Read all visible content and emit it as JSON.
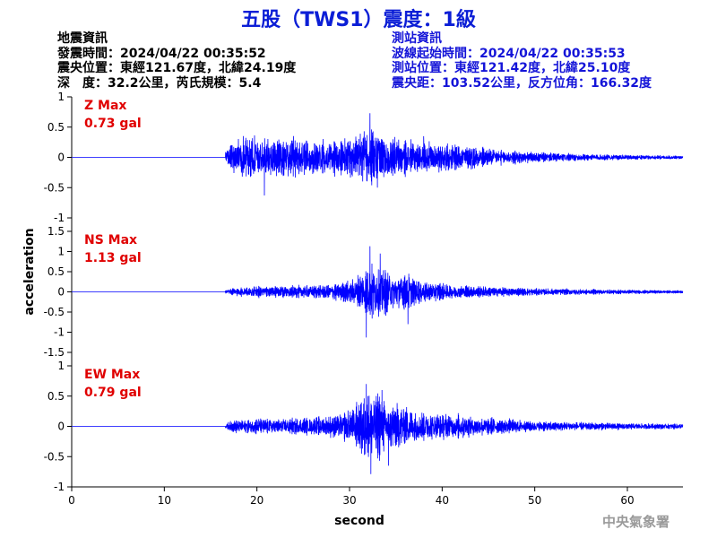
{
  "header": {
    "title": "五股（TWS1）震度：1級",
    "quake_info": [
      "地震資訊",
      "發震時間：2024/04/22 00:35:52",
      "震央位置：東經121.67度，北緯24.19度",
      "深　度：32.2公里，芮氏規模：5.4"
    ],
    "station_info": [
      "測站資訊",
      "波線起始時間：2024/04/22 00:35:53",
      "測站位置：東經121.42度，北緯25.10度",
      "震央距：103.52公里，反方位角：166.32度"
    ]
  },
  "footer": {
    "credit": "中央氣象署"
  },
  "colors": {
    "trace": "#0000ff",
    "max_label": "#e00000",
    "title": "#0b1ed6",
    "station_info": "#1414d8"
  },
  "chart_data": {
    "type": "line",
    "xlabel": "second",
    "ylabel": "acceleration",
    "xlim": [
      0,
      66
    ],
    "xticks": [
      0,
      10,
      20,
      30,
      40,
      50,
      60
    ],
    "grid": false,
    "panels": [
      {
        "name": "Z",
        "max_label": "Z Max",
        "max_value": "0.73 gal",
        "ylim": [
          -1,
          1
        ],
        "yticks": [
          -1,
          -0.5,
          0,
          0.5,
          1
        ],
        "ytick_labels": [
          "-1",
          "-0.5",
          "0",
          "0.5",
          "1"
        ],
        "onset_s": 16.6,
        "envelope": [
          [
            16.6,
            0.12
          ],
          [
            17.5,
            0.3
          ],
          [
            18,
            0.4
          ],
          [
            19,
            0.45
          ],
          [
            20,
            0.42
          ],
          [
            22,
            0.38
          ],
          [
            24,
            0.35
          ],
          [
            26,
            0.33
          ],
          [
            28,
            0.35
          ],
          [
            29.5,
            0.38
          ],
          [
            31,
            0.45
          ],
          [
            32.2,
            0.55
          ],
          [
            33.5,
            0.45
          ],
          [
            35,
            0.35
          ],
          [
            37,
            0.3
          ],
          [
            40,
            0.28
          ],
          [
            42,
            0.25
          ],
          [
            44,
            0.2
          ],
          [
            46,
            0.15
          ],
          [
            50,
            0.1
          ],
          [
            55,
            0.07
          ],
          [
            60,
            0.05
          ],
          [
            66,
            0.03
          ]
        ],
        "peaks": [
          [
            20.8,
            -0.63
          ],
          [
            32.2,
            0.73
          ],
          [
            33.0,
            -0.5
          ],
          [
            38.0,
            0.35
          ]
        ]
      },
      {
        "name": "NS",
        "max_label": "NS Max",
        "max_value": "1.13 gal",
        "ylim": [
          -1.5,
          1.5
        ],
        "yticks": [
          -1.5,
          -1,
          -0.5,
          0,
          0.5,
          1,
          1.5
        ],
        "ytick_labels": [
          "-1.5",
          "-1",
          "-0.5",
          "0",
          "0.5",
          "1",
          "1.5"
        ],
        "onset_s": 16.6,
        "envelope": [
          [
            16.6,
            0.05
          ],
          [
            17.5,
            0.12
          ],
          [
            20,
            0.15
          ],
          [
            23,
            0.17
          ],
          [
            26,
            0.18
          ],
          [
            28,
            0.22
          ],
          [
            30,
            0.3
          ],
          [
            31.5,
            0.55
          ],
          [
            32.5,
            0.8
          ],
          [
            33.5,
            0.7
          ],
          [
            35,
            0.45
          ],
          [
            36,
            0.6
          ],
          [
            37,
            0.35
          ],
          [
            39,
            0.25
          ],
          [
            42,
            0.2
          ],
          [
            45,
            0.15
          ],
          [
            50,
            0.1
          ],
          [
            55,
            0.08
          ],
          [
            60,
            0.06
          ],
          [
            66,
            0.04
          ]
        ],
        "peaks": [
          [
            32.2,
            1.13
          ],
          [
            31.8,
            -1.13
          ],
          [
            36.3,
            -0.8
          ],
          [
            33.3,
            0.95
          ]
        ]
      },
      {
        "name": "EW",
        "max_label": "EW Max",
        "max_value": "0.79 gal",
        "ylim": [
          -1,
          1
        ],
        "yticks": [
          -1,
          -0.5,
          0,
          0.5,
          1
        ],
        "ytick_labels": [
          "-1",
          "-0.5",
          "0",
          "0.5",
          "1"
        ],
        "onset_s": 16.6,
        "envelope": [
          [
            16.6,
            0.05
          ],
          [
            17.5,
            0.12
          ],
          [
            20,
            0.15
          ],
          [
            24,
            0.15
          ],
          [
            27,
            0.17
          ],
          [
            29,
            0.22
          ],
          [
            30.5,
            0.35
          ],
          [
            31.5,
            0.6
          ],
          [
            32.5,
            0.65
          ],
          [
            34,
            0.5
          ],
          [
            35.5,
            0.4
          ],
          [
            37,
            0.3
          ],
          [
            39,
            0.25
          ],
          [
            42,
            0.22
          ],
          [
            45,
            0.17
          ],
          [
            50,
            0.1
          ],
          [
            55,
            0.08
          ],
          [
            60,
            0.06
          ],
          [
            66,
            0.05
          ]
        ],
        "peaks": [
          [
            32.3,
            -0.79
          ],
          [
            31.8,
            0.7
          ],
          [
            33.5,
            0.6
          ],
          [
            34.2,
            -0.65
          ]
        ]
      }
    ]
  }
}
